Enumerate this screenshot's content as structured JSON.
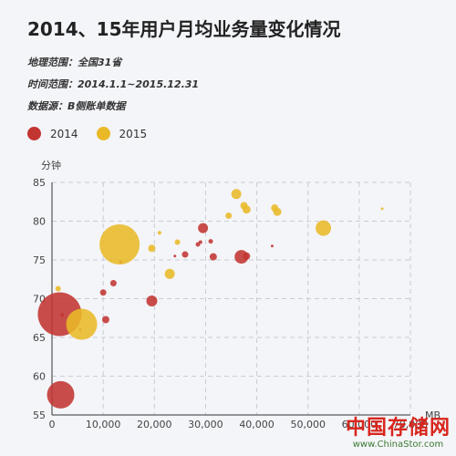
{
  "header": {
    "title": "2014、15年用户月均业务量变化情况",
    "range": "地理范围：全国31省",
    "time": "时间范围：2014.1.1~2015.12.31",
    "source": "数据源：B侧账单数据"
  },
  "watermark": {
    "cn": "中国存储网",
    "url": "www.ChinaStor.com"
  },
  "chart_data": {
    "type": "scatter",
    "title": "2014、15年用户月均业务量变化情况",
    "xlabel": "MB",
    "ylabel": "分钟",
    "xlim": [
      0,
      70000
    ],
    "ylim": [
      55,
      85
    ],
    "xticks": [
      "0",
      "10,000",
      "20,000",
      "30,000",
      "40,000",
      "50,000",
      "60,000",
      "70,000"
    ],
    "yticks": [
      "55",
      "60",
      "65",
      "70",
      "75",
      "80",
      "85"
    ],
    "grid": true,
    "legend_position": "top-left",
    "series": [
      {
        "name": "2014",
        "color": "#c23531",
        "points": [
          {
            "x": 1500,
            "y": 68,
            "size": 24
          },
          {
            "x": 1700,
            "y": 57.6,
            "size": 15
          },
          {
            "x": 2000,
            "y": 67.9,
            "size": 2
          },
          {
            "x": 5500,
            "y": 66,
            "size": 1.5
          },
          {
            "x": 10000,
            "y": 70.8,
            "size": 3.5
          },
          {
            "x": 10500,
            "y": 67.3,
            "size": 4
          },
          {
            "x": 12000,
            "y": 72,
            "size": 3.5
          },
          {
            "x": 13500,
            "y": 74.7,
            "size": 2
          },
          {
            "x": 19500,
            "y": 69.7,
            "size": 6
          },
          {
            "x": 24000,
            "y": 75.5,
            "size": 1.5
          },
          {
            "x": 26000,
            "y": 75.7,
            "size": 3.5
          },
          {
            "x": 28500,
            "y": 77,
            "size": 2.5
          },
          {
            "x": 29000,
            "y": 77.3,
            "size": 2
          },
          {
            "x": 29500,
            "y": 79.1,
            "size": 5.5
          },
          {
            "x": 31000,
            "y": 77.4,
            "size": 2.5
          },
          {
            "x": 31500,
            "y": 75.4,
            "size": 4
          },
          {
            "x": 37000,
            "y": 75.4,
            "size": 7.5
          },
          {
            "x": 38000,
            "y": 75.5,
            "size": 4
          },
          {
            "x": 43000,
            "y": 76.8,
            "size": 1.5
          }
        ]
      },
      {
        "name": "2015",
        "color": "#e9b928",
        "points": [
          {
            "x": 1200,
            "y": 71.3,
            "size": 3
          },
          {
            "x": 5800,
            "y": 66.7,
            "size": 17
          },
          {
            "x": 13200,
            "y": 77,
            "size": 22
          },
          {
            "x": 19500,
            "y": 76.5,
            "size": 4
          },
          {
            "x": 21000,
            "y": 78.5,
            "size": 2
          },
          {
            "x": 23000,
            "y": 73.2,
            "size": 5.5
          },
          {
            "x": 24500,
            "y": 77.3,
            "size": 3
          },
          {
            "x": 34500,
            "y": 80.7,
            "size": 3.5
          },
          {
            "x": 36000,
            "y": 83.5,
            "size": 5.5
          },
          {
            "x": 37500,
            "y": 82,
            "size": 4
          },
          {
            "x": 38000,
            "y": 81.5,
            "size": 4.5
          },
          {
            "x": 43500,
            "y": 81.7,
            "size": 4
          },
          {
            "x": 44000,
            "y": 81.2,
            "size": 4.5
          },
          {
            "x": 53000,
            "y": 79.1,
            "size": 8.5
          },
          {
            "x": 64500,
            "y": 81.6,
            "size": 1.5
          }
        ]
      }
    ]
  }
}
